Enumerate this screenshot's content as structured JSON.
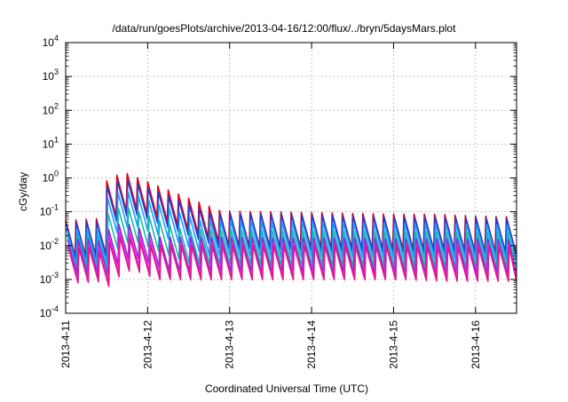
{
  "chart_data": {
    "type": "line",
    "title": "/data/run/goesPlots/archive/2013-04-16/12:00/flux/../bryn/5daysMars.plot",
    "xlabel": "Coordinated Universal Time (UTC)",
    "ylabel": "cGy/day",
    "x_tick_labels": [
      "2013-4-11",
      "2013-4-12",
      "2013-4-13",
      "2013-4-14",
      "2013-4-15",
      "2013-4-16"
    ],
    "y_tick_labels": [
      {
        "base": "10",
        "exp": "4"
      },
      {
        "base": "10",
        "exp": "3"
      },
      {
        "base": "10",
        "exp": "2"
      },
      {
        "base": "10",
        "exp": "1"
      },
      {
        "base": "10",
        "exp": "0"
      },
      {
        "base": "10",
        "exp": "-1"
      },
      {
        "base": "10",
        "exp": "-2"
      },
      {
        "base": "10",
        "exp": "-3"
      },
      {
        "base": "10",
        "exp": "-4"
      }
    ],
    "x_range_days": [
      0,
      5.5
    ],
    "y_scale": "log",
    "ylim": [
      0.0001,
      10000
    ],
    "grid": true,
    "sawtooth_period_days": 0.125,
    "sawtooth_drop_factor": 10,
    "event_onset_day": 0.5,
    "event_peak_day": 0.7,
    "series": [
      {
        "color": "#e3001b",
        "base_values": [
          0.055,
          0.065,
          0.09,
          0.1,
          0.105,
          0.1,
          0.095,
          0.09,
          0.085,
          0.085,
          0.075,
          0.07
        ],
        "peak_value": 1.5,
        "dip_value": 0.02
      },
      {
        "color": "#1f3fd1",
        "base_values": [
          0.045,
          0.055,
          0.08,
          0.085,
          0.09,
          0.085,
          0.08,
          0.075,
          0.07,
          0.07,
          0.065,
          0.06
        ],
        "peak_value": 1.0,
        "dip_value": 0.015
      },
      {
        "color": "#1aa0ff",
        "base_values": [
          0.03,
          0.035,
          0.05,
          0.055,
          0.055,
          0.05,
          0.05,
          0.048,
          0.045,
          0.045,
          0.042,
          0.04
        ],
        "peak_value": 0.45,
        "dip_value": 0.01
      },
      {
        "color": "#20b8a8",
        "base_values": [
          0.02,
          0.022,
          0.03,
          0.03,
          0.03,
          0.028,
          0.028,
          0.027,
          0.026,
          0.026,
          0.025,
          0.024
        ],
        "peak_value": 0.15,
        "dip_value": 0.008
      },
      {
        "color": "#8a2be2",
        "base_values": [
          0.015,
          0.016,
          0.018,
          0.018,
          0.018,
          0.017,
          0.017,
          0.017,
          0.016,
          0.016,
          0.016,
          0.015
        ],
        "peak_value": 0.05,
        "dip_value": 0.006
      },
      {
        "color": "#ff1fd2",
        "base_values": [
          0.01,
          0.011,
          0.012,
          0.012,
          0.012,
          0.012,
          0.012,
          0.011,
          0.011,
          0.011,
          0.011,
          0.011
        ],
        "peak_value": 0.03,
        "dip_value": 0.003
      },
      {
        "color": "#d81b8c",
        "base_values": [
          0.008,
          0.009,
          0.01,
          0.01,
          0.01,
          0.01,
          0.01,
          0.01,
          0.01,
          0.009,
          0.009,
          0.009
        ],
        "peak_value": 0.02,
        "dip_value": 0.0025
      }
    ]
  }
}
